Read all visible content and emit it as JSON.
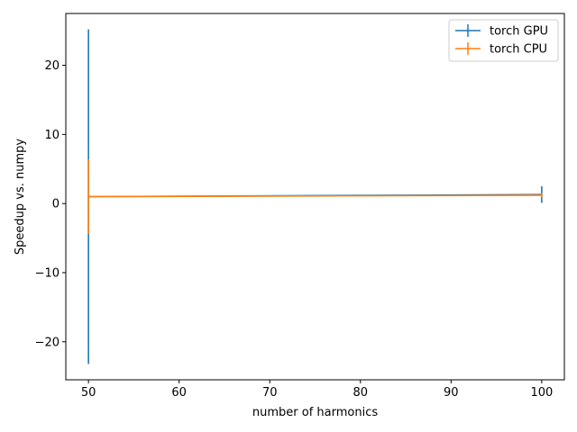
{
  "chart_data": {
    "type": "line",
    "title": "",
    "xlabel": "number of harmonics",
    "ylabel": "Speedup vs. numpy",
    "xlim": [
      47.5,
      102.5
    ],
    "ylim": [
      -25.5,
      27.5
    ],
    "xticks": [
      50,
      60,
      70,
      80,
      90,
      100
    ],
    "yticks": [
      -20,
      -10,
      0,
      10,
      20
    ],
    "xtick_labels": [
      "50",
      "60",
      "70",
      "80",
      "90",
      "100"
    ],
    "ytick_labels": [
      "−20",
      "−10",
      "0",
      "10",
      "20"
    ],
    "grid": false,
    "legend_position": "top-right",
    "series": [
      {
        "name": "torch GPU",
        "color": "#1f77b4",
        "x": [
          50,
          100
        ],
        "y": [
          1.0,
          1.3
        ],
        "yerr": [
          24.2,
          1.2
        ]
      },
      {
        "name": "torch CPU",
        "color": "#ff7f0e",
        "x": [
          50,
          100
        ],
        "y": [
          1.0,
          1.2
        ],
        "yerr": [
          5.4,
          0.3
        ]
      }
    ]
  }
}
